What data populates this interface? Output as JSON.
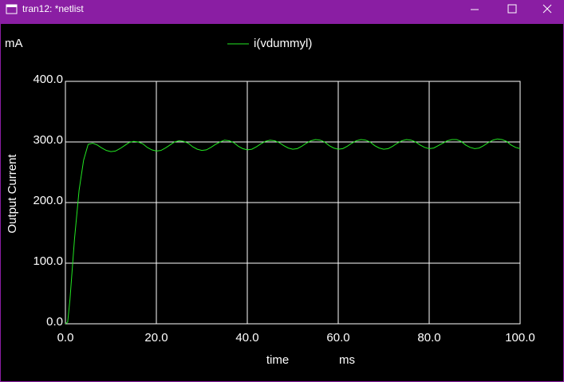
{
  "window": {
    "title": "tran12: *netlist"
  },
  "chart_data": {
    "type": "line",
    "y_unit": "mA",
    "ylabel": "Output Current",
    "xlabel": "time",
    "x_unit": "ms",
    "xlim": [
      0,
      100
    ],
    "ylim": [
      0,
      400
    ],
    "xticks": [
      {
        "value": 0,
        "label": "0.0"
      },
      {
        "value": 20,
        "label": "20.0"
      },
      {
        "value": 40,
        "label": "40.0"
      },
      {
        "value": 60,
        "label": "60.0"
      },
      {
        "value": 80,
        "label": "80.0"
      },
      {
        "value": 100,
        "label": "100.0"
      }
    ],
    "yticks": [
      {
        "value": 0,
        "label": "0.0"
      },
      {
        "value": 100,
        "label": "100.0"
      },
      {
        "value": 200,
        "label": "200.0"
      },
      {
        "value": 300,
        "label": "300.0"
      },
      {
        "value": 400,
        "label": "400.0"
      }
    ],
    "grid": true,
    "x": [
      0,
      0.5,
      1,
      2,
      3,
      4,
      5,
      6,
      7,
      8,
      9,
      10,
      11,
      12,
      13,
      14,
      15,
      16,
      17,
      18,
      19,
      20,
      21,
      22,
      23,
      24,
      25,
      26,
      27,
      28,
      29,
      30,
      31,
      32,
      33,
      34,
      35,
      36,
      37,
      38,
      39,
      40,
      41,
      42,
      43,
      44,
      45,
      46,
      47,
      48,
      49,
      50,
      51,
      52,
      53,
      54,
      55,
      56,
      57,
      58,
      59,
      60,
      61,
      62,
      63,
      64,
      65,
      66,
      67,
      68,
      69,
      70,
      71,
      72,
      73,
      74,
      75,
      76,
      77,
      78,
      79,
      80,
      81,
      82,
      83,
      84,
      85,
      86,
      87,
      88,
      89,
      90,
      91,
      92,
      93,
      94,
      95,
      96,
      97,
      98,
      99,
      100
    ],
    "series": [
      {
        "name": "i(vdummyl)",
        "color": "#22e822",
        "values": [
          0,
          3,
          40,
          140,
          220,
          270,
          296,
          298,
          295,
          290,
          286,
          284,
          285,
          289,
          294,
          299,
          301,
          300,
          297,
          291,
          287,
          285,
          286,
          290,
          295,
          300,
          302,
          301,
          298,
          292,
          288,
          286,
          287,
          291,
          296,
          300,
          303,
          302,
          299,
          293,
          289,
          287,
          288,
          292,
          297,
          301,
          303,
          302,
          299,
          294,
          290,
          288,
          289,
          293,
          298,
          302,
          304,
          303,
          300,
          294,
          290,
          288,
          289,
          293,
          298,
          302,
          304,
          303,
          300,
          294,
          290,
          288,
          289,
          293,
          298,
          302,
          304,
          303,
          300,
          295,
          291,
          289,
          290,
          294,
          298,
          302,
          304,
          304,
          301,
          295,
          291,
          289,
          290,
          294,
          299,
          303,
          305,
          304,
          301,
          295,
          291,
          289
        ]
      }
    ]
  }
}
